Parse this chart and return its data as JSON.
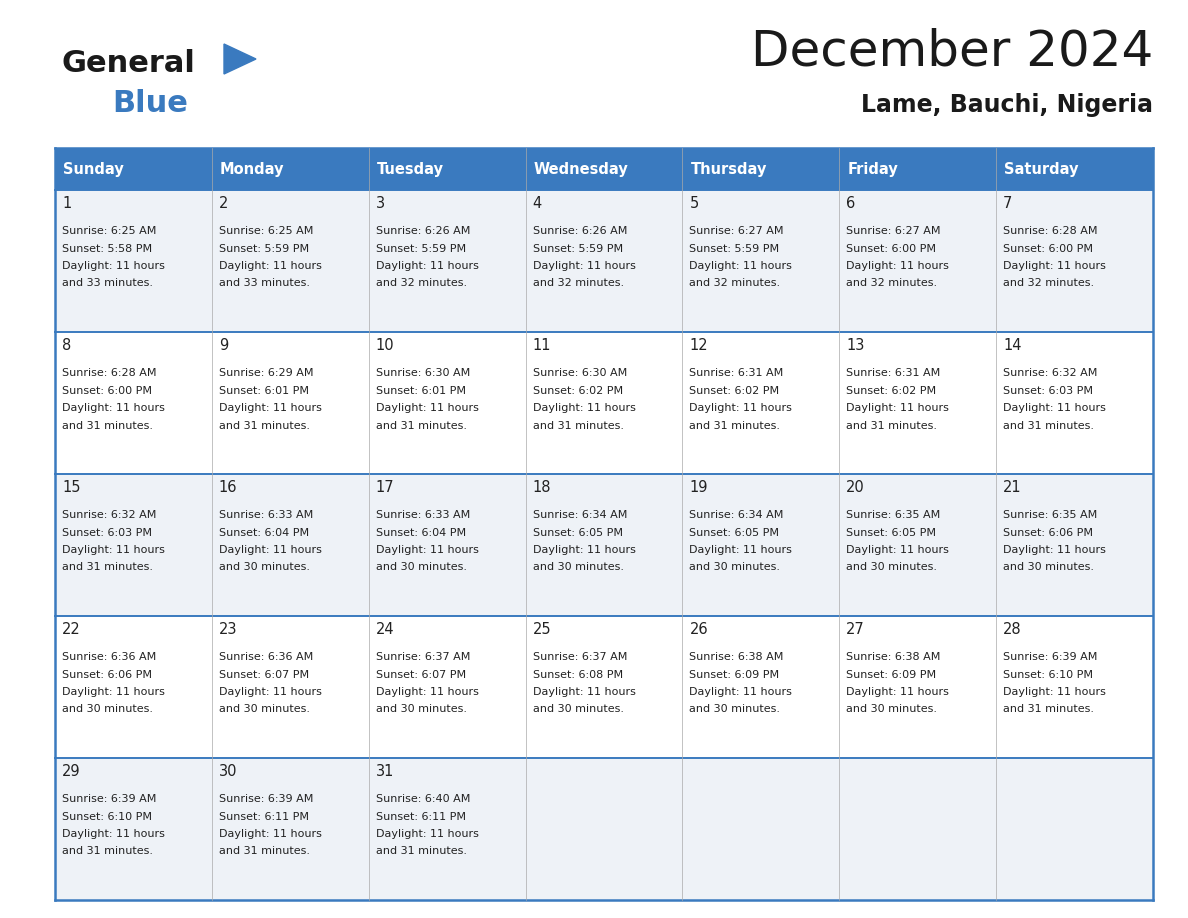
{
  "title": "December 2024",
  "subtitle": "Lame, Bauchi, Nigeria",
  "header_color": "#3a7abf",
  "header_text_color": "#ffffff",
  "bg_color_odd": "#eef2f7",
  "bg_color_even": "#ffffff",
  "text_color": "#222222",
  "day_names": [
    "Sunday",
    "Monday",
    "Tuesday",
    "Wednesday",
    "Thursday",
    "Friday",
    "Saturday"
  ],
  "days": [
    {
      "day": 1,
      "col": 0,
      "row": 0,
      "sunrise": "6:25 AM",
      "sunset": "5:58 PM",
      "daylight_mins": "33"
    },
    {
      "day": 2,
      "col": 1,
      "row": 0,
      "sunrise": "6:25 AM",
      "sunset": "5:59 PM",
      "daylight_mins": "33"
    },
    {
      "day": 3,
      "col": 2,
      "row": 0,
      "sunrise": "6:26 AM",
      "sunset": "5:59 PM",
      "daylight_mins": "32"
    },
    {
      "day": 4,
      "col": 3,
      "row": 0,
      "sunrise": "6:26 AM",
      "sunset": "5:59 PM",
      "daylight_mins": "32"
    },
    {
      "day": 5,
      "col": 4,
      "row": 0,
      "sunrise": "6:27 AM",
      "sunset": "5:59 PM",
      "daylight_mins": "32"
    },
    {
      "day": 6,
      "col": 5,
      "row": 0,
      "sunrise": "6:27 AM",
      "sunset": "6:00 PM",
      "daylight_mins": "32"
    },
    {
      "day": 7,
      "col": 6,
      "row": 0,
      "sunrise": "6:28 AM",
      "sunset": "6:00 PM",
      "daylight_mins": "32"
    },
    {
      "day": 8,
      "col": 0,
      "row": 1,
      "sunrise": "6:28 AM",
      "sunset": "6:00 PM",
      "daylight_mins": "31"
    },
    {
      "day": 9,
      "col": 1,
      "row": 1,
      "sunrise": "6:29 AM",
      "sunset": "6:01 PM",
      "daylight_mins": "31"
    },
    {
      "day": 10,
      "col": 2,
      "row": 1,
      "sunrise": "6:30 AM",
      "sunset": "6:01 PM",
      "daylight_mins": "31"
    },
    {
      "day": 11,
      "col": 3,
      "row": 1,
      "sunrise": "6:30 AM",
      "sunset": "6:02 PM",
      "daylight_mins": "31"
    },
    {
      "day": 12,
      "col": 4,
      "row": 1,
      "sunrise": "6:31 AM",
      "sunset": "6:02 PM",
      "daylight_mins": "31"
    },
    {
      "day": 13,
      "col": 5,
      "row": 1,
      "sunrise": "6:31 AM",
      "sunset": "6:02 PM",
      "daylight_mins": "31"
    },
    {
      "day": 14,
      "col": 6,
      "row": 1,
      "sunrise": "6:32 AM",
      "sunset": "6:03 PM",
      "daylight_mins": "31"
    },
    {
      "day": 15,
      "col": 0,
      "row": 2,
      "sunrise": "6:32 AM",
      "sunset": "6:03 PM",
      "daylight_mins": "31"
    },
    {
      "day": 16,
      "col": 1,
      "row": 2,
      "sunrise": "6:33 AM",
      "sunset": "6:04 PM",
      "daylight_mins": "30"
    },
    {
      "day": 17,
      "col": 2,
      "row": 2,
      "sunrise": "6:33 AM",
      "sunset": "6:04 PM",
      "daylight_mins": "30"
    },
    {
      "day": 18,
      "col": 3,
      "row": 2,
      "sunrise": "6:34 AM",
      "sunset": "6:05 PM",
      "daylight_mins": "30"
    },
    {
      "day": 19,
      "col": 4,
      "row": 2,
      "sunrise": "6:34 AM",
      "sunset": "6:05 PM",
      "daylight_mins": "30"
    },
    {
      "day": 20,
      "col": 5,
      "row": 2,
      "sunrise": "6:35 AM",
      "sunset": "6:05 PM",
      "daylight_mins": "30"
    },
    {
      "day": 21,
      "col": 6,
      "row": 2,
      "sunrise": "6:35 AM",
      "sunset": "6:06 PM",
      "daylight_mins": "30"
    },
    {
      "day": 22,
      "col": 0,
      "row": 3,
      "sunrise": "6:36 AM",
      "sunset": "6:06 PM",
      "daylight_mins": "30"
    },
    {
      "day": 23,
      "col": 1,
      "row": 3,
      "sunrise": "6:36 AM",
      "sunset": "6:07 PM",
      "daylight_mins": "30"
    },
    {
      "day": 24,
      "col": 2,
      "row": 3,
      "sunrise": "6:37 AM",
      "sunset": "6:07 PM",
      "daylight_mins": "30"
    },
    {
      "day": 25,
      "col": 3,
      "row": 3,
      "sunrise": "6:37 AM",
      "sunset": "6:08 PM",
      "daylight_mins": "30"
    },
    {
      "day": 26,
      "col": 4,
      "row": 3,
      "sunrise": "6:38 AM",
      "sunset": "6:09 PM",
      "daylight_mins": "30"
    },
    {
      "day": 27,
      "col": 5,
      "row": 3,
      "sunrise": "6:38 AM",
      "sunset": "6:09 PM",
      "daylight_mins": "30"
    },
    {
      "day": 28,
      "col": 6,
      "row": 3,
      "sunrise": "6:39 AM",
      "sunset": "6:10 PM",
      "daylight_mins": "31"
    },
    {
      "day": 29,
      "col": 0,
      "row": 4,
      "sunrise": "6:39 AM",
      "sunset": "6:10 PM",
      "daylight_mins": "31"
    },
    {
      "day": 30,
      "col": 1,
      "row": 4,
      "sunrise": "6:39 AM",
      "sunset": "6:11 PM",
      "daylight_mins": "31"
    },
    {
      "day": 31,
      "col": 2,
      "row": 4,
      "sunrise": "6:40 AM",
      "sunset": "6:11 PM",
      "daylight_mins": "31"
    }
  ]
}
